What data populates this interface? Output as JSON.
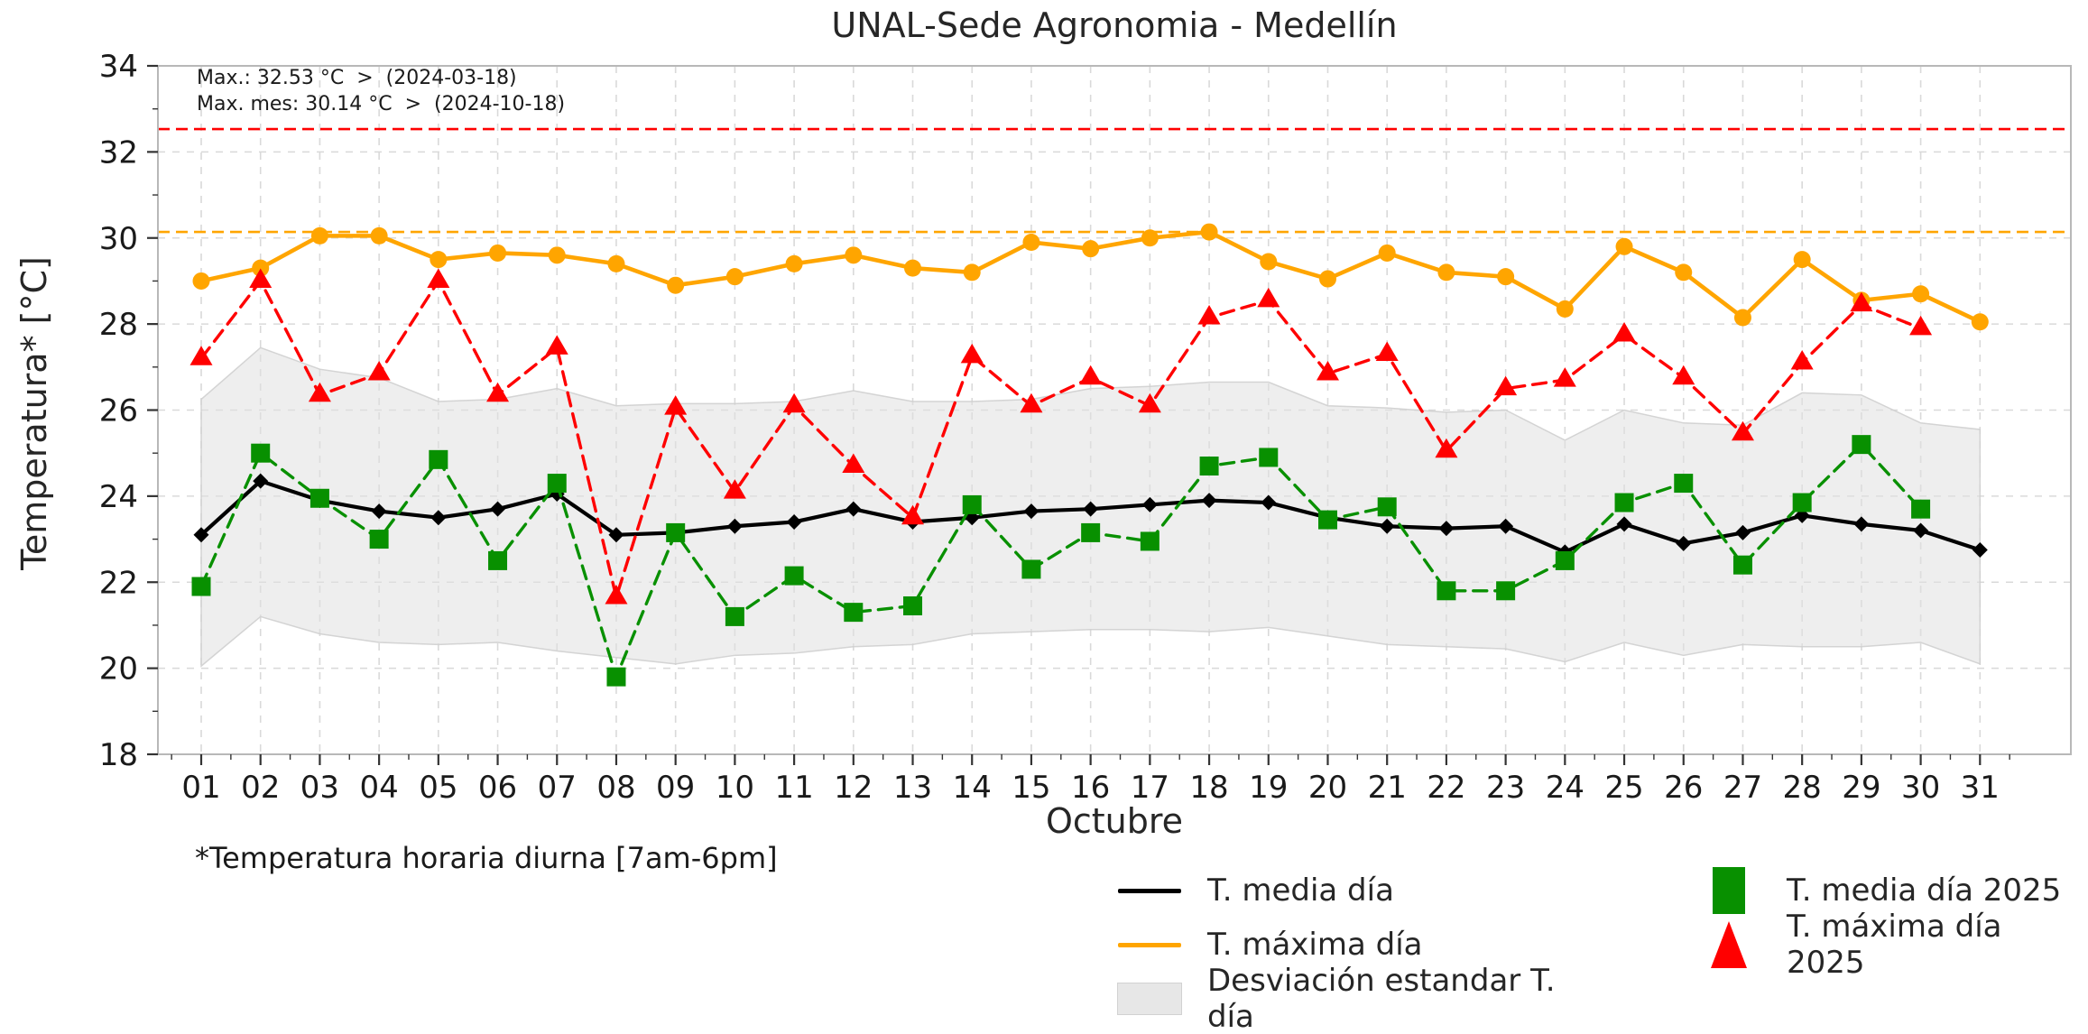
{
  "title": "UNAL-Sede Agronomia - Medellín",
  "footnote": "*Temperatura horaria diurna [7am-6pm]",
  "annotations": {
    "record_max": {
      "text": "Max.: 32.53 °C  >  (2024-03-18)",
      "value": 32.53,
      "date": "2024-03-18",
      "color": "#ff0000"
    },
    "month_max": {
      "text": "Max. mes: 30.14 °C  >  (2024-10-18)",
      "value": 30.14,
      "date": "2024-10-18",
      "color": "#ffa500"
    }
  },
  "legend": {
    "items": [
      {
        "label": "T. media día",
        "type": "line",
        "color": "#000000"
      },
      {
        "label": "T. máxima día",
        "type": "line",
        "color": "#ffa500"
      },
      {
        "label": "Desviación estandar T. día",
        "type": "patch",
        "color": "#e7e7e7"
      },
      {
        "label": "T. media día 2025",
        "type": "square",
        "color": "#089000"
      },
      {
        "label": "T. máxima día 2025",
        "type": "triangle",
        "color": "#ff0000"
      }
    ]
  },
  "chart_data": {
    "type": "line",
    "title": "UNAL-Sede Agronomia - Medellín",
    "xlabel": "Octubre",
    "ylabel": "Temperatura* [°C]",
    "ylim": [
      18,
      34
    ],
    "yticks": [
      18,
      20,
      22,
      24,
      26,
      28,
      30,
      32,
      34
    ],
    "grid": true,
    "legend_position": "bottom",
    "categories": [
      "01",
      "02",
      "03",
      "04",
      "05",
      "06",
      "07",
      "08",
      "09",
      "10",
      "11",
      "12",
      "13",
      "14",
      "15",
      "16",
      "17",
      "18",
      "19",
      "20",
      "21",
      "22",
      "23",
      "24",
      "25",
      "26",
      "27",
      "28",
      "29",
      "30",
      "31"
    ],
    "series": [
      {
        "name": "T. media día",
        "type": "line",
        "color": "#000000",
        "linestyle": "solid",
        "marker": "diamond",
        "values": [
          23.1,
          24.35,
          23.9,
          23.65,
          23.5,
          23.7,
          24.05,
          23.1,
          23.15,
          23.3,
          23.4,
          23.7,
          23.4,
          23.5,
          23.65,
          23.7,
          23.8,
          23.9,
          23.85,
          23.5,
          23.3,
          23.25,
          23.3,
          22.7,
          23.35,
          22.9,
          23.15,
          23.55,
          23.35,
          23.2,
          22.75
        ]
      },
      {
        "name": "T. máxima día",
        "type": "line",
        "color": "#ffa500",
        "linestyle": "solid",
        "marker": "circle",
        "values": [
          29.0,
          29.3,
          30.05,
          30.05,
          29.5,
          29.65,
          29.6,
          29.4,
          28.9,
          29.1,
          29.4,
          29.6,
          29.3,
          29.2,
          29.9,
          29.75,
          30.0,
          30.14,
          29.45,
          29.05,
          29.65,
          29.2,
          29.1,
          28.35,
          29.8,
          29.2,
          28.15,
          29.5,
          28.55,
          28.7,
          28.05
        ]
      },
      {
        "name": "T. media día 2025",
        "type": "line",
        "color": "#089000",
        "linestyle": "dashed",
        "marker": "square",
        "values": [
          21.9,
          25.0,
          23.95,
          23.0,
          24.85,
          22.5,
          24.3,
          19.8,
          23.15,
          21.2,
          22.15,
          21.3,
          21.45,
          23.8,
          22.3,
          23.15,
          22.95,
          24.7,
          24.9,
          23.45,
          23.75,
          21.8,
          21.8,
          22.5,
          23.85,
          24.3,
          22.4,
          23.85,
          25.2,
          23.7,
          null
        ]
      },
      {
        "name": "T. máxima día 2025",
        "type": "line",
        "color": "#ff0000",
        "linestyle": "dashed",
        "marker": "triangle",
        "values": [
          27.2,
          29.0,
          26.35,
          26.85,
          29.0,
          26.35,
          27.45,
          21.65,
          26.05,
          24.1,
          26.1,
          24.7,
          23.5,
          27.25,
          26.1,
          26.75,
          26.1,
          28.15,
          28.55,
          26.85,
          27.3,
          25.05,
          26.5,
          26.7,
          27.75,
          26.75,
          25.45,
          27.1,
          28.45,
          27.9,
          null
        ]
      },
      {
        "name": "Desviación estandar T. día",
        "type": "band",
        "color": "#e0e0e0",
        "upper": [
          26.25,
          27.45,
          26.95,
          26.75,
          26.2,
          26.25,
          26.5,
          26.1,
          26.15,
          26.15,
          26.2,
          26.45,
          26.2,
          26.2,
          26.25,
          26.5,
          26.55,
          26.65,
          26.65,
          26.1,
          26.05,
          25.95,
          26.0,
          25.3,
          26.0,
          25.7,
          25.65,
          26.4,
          26.35,
          25.7,
          25.55
        ],
        "lower": [
          20.05,
          21.2,
          20.8,
          20.6,
          20.55,
          20.6,
          20.4,
          20.25,
          20.1,
          20.3,
          20.35,
          20.5,
          20.55,
          20.8,
          20.85,
          20.9,
          20.9,
          20.85,
          20.95,
          20.75,
          20.55,
          20.5,
          20.45,
          20.15,
          20.6,
          20.3,
          20.55,
          20.5,
          20.5,
          20.6,
          20.1
        ]
      }
    ],
    "hlines": [
      {
        "y": 32.53,
        "color": "#ff0000",
        "style": "dashed",
        "label": "Max.: 32.53 °C  >  (2024-03-18)"
      },
      {
        "y": 30.14,
        "color": "#ffa500",
        "style": "dashed",
        "label": "Max. mes: 30.14 °C  >  (2024-10-18)"
      }
    ]
  }
}
